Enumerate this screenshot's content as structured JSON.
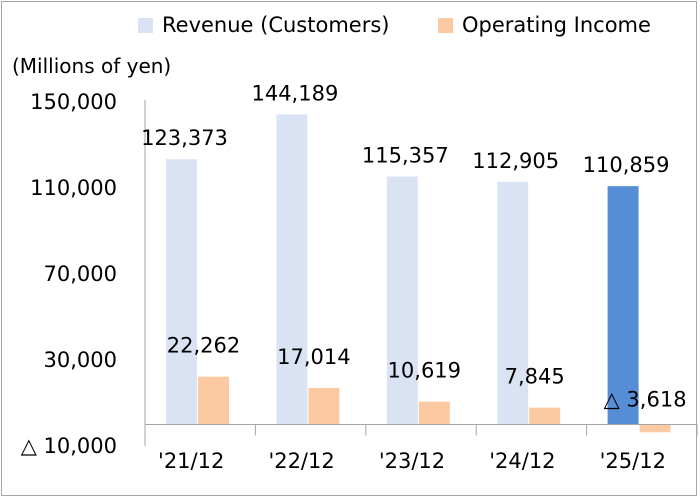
{
  "chart_data": {
    "type": "bar",
    "unit_label": "(Millions of yen)",
    "categories": [
      "'21/12",
      "'22/12",
      "'23/12",
      "'24/12",
      "'25/12"
    ],
    "series": [
      {
        "name": "Revenue (Customers)",
        "values": [
          123373,
          144189,
          115357,
          112905,
          110859
        ],
        "labels": [
          "123,373",
          "144,189",
          "115,357",
          "112,905",
          "110,859"
        ],
        "color": "#dae3f3",
        "highlight_color": "#558ed5",
        "highlight_index": 4
      },
      {
        "name": "Operating Income",
        "values": [
          22262,
          17014,
          10619,
          7845,
          -3618
        ],
        "labels": [
          "22,262",
          "17,014",
          "10,619",
          "7,845",
          "△ 3,618"
        ],
        "color": "#fbcaa2"
      }
    ],
    "y_ticks": [
      150000,
      110000,
      70000,
      30000,
      -10000
    ],
    "y_tick_labels": [
      "150,000",
      "110,000",
      "70,000",
      "30,000",
      "△ 10,000"
    ],
    "ylim": [
      -10000,
      150000
    ],
    "grid": false,
    "legend": "top"
  }
}
